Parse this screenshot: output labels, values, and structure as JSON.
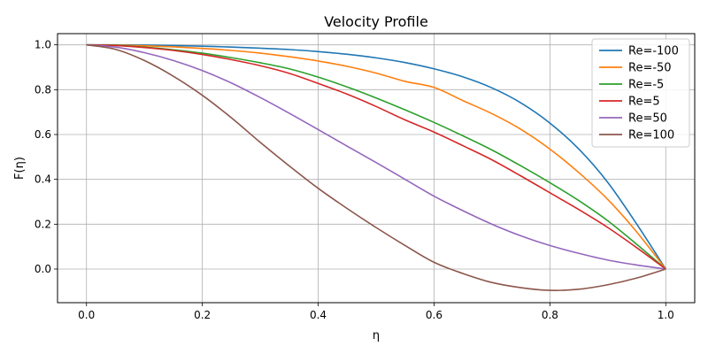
{
  "chart_data": {
    "type": "line",
    "title": "Velocity Profile",
    "xlabel": "η",
    "ylabel": "F(η)",
    "xlim": [
      -0.05,
      1.05
    ],
    "ylim": [
      -0.15,
      1.05
    ],
    "x_ticks": [
      0.0,
      0.2,
      0.4,
      0.6,
      0.8,
      1.0
    ],
    "x_tick_labels": [
      "0.0",
      "0.2",
      "0.4",
      "0.6",
      "0.8",
      "1.0"
    ],
    "y_ticks": [
      0.0,
      0.2,
      0.4,
      0.6,
      0.8,
      1.0
    ],
    "y_tick_labels": [
      "0.0",
      "0.2",
      "0.4",
      "0.6",
      "0.8",
      "1.0"
    ],
    "grid": true,
    "legend_position": "top-right",
    "x": [
      0.0,
      0.05,
      0.1,
      0.15,
      0.2,
      0.25,
      0.3,
      0.35,
      0.4,
      0.45,
      0.5,
      0.55,
      0.6,
      0.65,
      0.7,
      0.75,
      0.8,
      0.85,
      0.9,
      0.95,
      1.0
    ],
    "series": [
      {
        "name": "Re=-100",
        "color": "#1f77b4",
        "values": [
          1.0,
          1.0,
          0.999,
          0.997,
          0.994,
          0.99,
          0.985,
          0.979,
          0.97,
          0.958,
          0.942,
          0.921,
          0.893,
          0.857,
          0.808,
          0.741,
          0.651,
          0.535,
          0.386,
          0.2,
          0.0
        ]
      },
      {
        "name": "Re=-50",
        "color": "#ff7f0e",
        "values": [
          1.0,
          0.999,
          0.996,
          0.991,
          0.984,
          0.975,
          0.963,
          0.947,
          0.928,
          0.904,
          0.874,
          0.837,
          0.81,
          0.751,
          0.693,
          0.623,
          0.535,
          0.43,
          0.31,
          0.165,
          0.0
        ]
      },
      {
        "name": "Re=-5",
        "color": "#2ca02c",
        "values": [
          1.0,
          0.998,
          0.99,
          0.978,
          0.963,
          0.943,
          0.92,
          0.893,
          0.856,
          0.812,
          0.763,
          0.71,
          0.654,
          0.594,
          0.531,
          0.46,
          0.385,
          0.305,
          0.215,
          0.11,
          0.0
        ]
      },
      {
        "name": "Re=5",
        "color": "#d62728",
        "values": [
          1.0,
          0.997,
          0.988,
          0.975,
          0.957,
          0.934,
          0.907,
          0.873,
          0.828,
          0.78,
          0.725,
          0.665,
          0.611,
          0.55,
          0.487,
          0.415,
          0.34,
          0.265,
          0.185,
          0.095,
          0.0
        ]
      },
      {
        "name": "Re=50",
        "color": "#9467bd",
        "values": [
          1.0,
          0.99,
          0.965,
          0.93,
          0.885,
          0.83,
          0.765,
          0.695,
          0.622,
          0.548,
          0.475,
          0.4,
          0.325,
          0.26,
          0.2,
          0.148,
          0.105,
          0.07,
          0.04,
          0.018,
          0.0
        ]
      },
      {
        "name": "Re=100",
        "color": "#8c564b",
        "values": [
          1.0,
          0.98,
          0.93,
          0.86,
          0.775,
          0.675,
          0.565,
          0.46,
          0.36,
          0.27,
          0.185,
          0.105,
          0.03,
          -0.02,
          -0.06,
          -0.083,
          -0.095,
          -0.09,
          -0.07,
          -0.04,
          0.0
        ]
      }
    ]
  }
}
